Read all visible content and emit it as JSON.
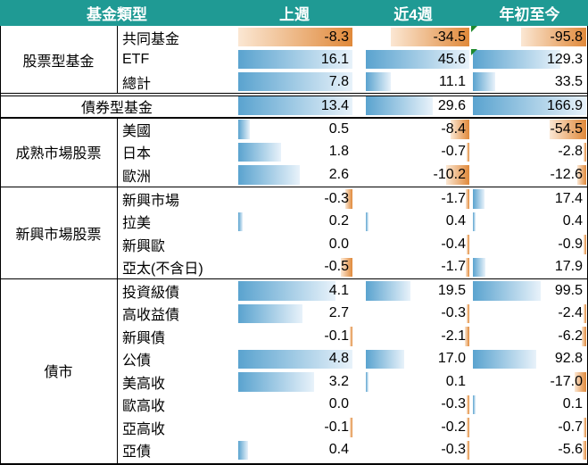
{
  "headers": {
    "category": "基金類型",
    "col1": "上週",
    "col2": "近4週",
    "col3": "年初至今"
  },
  "colors": {
    "header_bg": "#1f9a94",
    "positive_bar": "#5aa3cf",
    "negative_bar": "#e0893a",
    "flag": "#1e8a2e"
  },
  "groups": [
    {
      "label": "股票型基金",
      "rows": [
        {
          "category": "共同基金",
          "values": [
            "-8.3",
            "-34.5",
            "-95.8"
          ]
        },
        {
          "category": "ETF",
          "values": [
            "16.1",
            "45.6",
            "129.3"
          ]
        },
        {
          "category": "總計",
          "values": [
            "7.8",
            "11.1",
            "33.5"
          ]
        }
      ]
    },
    {
      "label": "債券型基金",
      "rows": [
        {
          "category": "",
          "values": [
            "13.4",
            "29.6",
            "166.9"
          ]
        }
      ]
    },
    {
      "label": "成熟市場股票",
      "rows": [
        {
          "category": "美國",
          "values": [
            "0.5",
            "-8.4",
            "-54.5"
          ]
        },
        {
          "category": "日本",
          "values": [
            "1.8",
            "-0.7",
            "-2.8"
          ]
        },
        {
          "category": "歐洲",
          "values": [
            "2.6",
            "-10.2",
            "-12.6"
          ]
        }
      ]
    },
    {
      "label": "新興市場股票",
      "rows": [
        {
          "category": "新興市場",
          "values": [
            "-0.3",
            "-1.7",
            "17.4"
          ]
        },
        {
          "category": "拉美",
          "values": [
            "0.2",
            "0.4",
            "0.4"
          ]
        },
        {
          "category": "新興歐",
          "values": [
            "0.0",
            "-0.4",
            "-0.9"
          ]
        },
        {
          "category": "亞太(不含日)",
          "values": [
            "-0.5",
            "-1.7",
            "17.9"
          ]
        }
      ]
    },
    {
      "label": "債市",
      "rows": [
        {
          "category": "投資級債",
          "values": [
            "4.1",
            "19.5",
            "99.5"
          ]
        },
        {
          "category": "高收益債",
          "values": [
            "2.7",
            "-0.3",
            "-2.4"
          ]
        },
        {
          "category": "新興債",
          "values": [
            "-0.1",
            "-2.1",
            "-6.2"
          ]
        },
        {
          "category": "公債",
          "values": [
            "4.8",
            "17.0",
            "92.8"
          ]
        },
        {
          "category": "美高收",
          "values": [
            "3.2",
            "0.1",
            "-17.0"
          ]
        },
        {
          "category": "歐高收",
          "values": [
            "0.0",
            "-0.3",
            "0.1"
          ]
        },
        {
          "category": "亞高收",
          "values": [
            "-0.1",
            "-0.2",
            "-0.7"
          ]
        },
        {
          "category": "亞債",
          "values": [
            "0.4",
            "-0.3",
            "-5.6"
          ]
        }
      ]
    }
  ]
}
